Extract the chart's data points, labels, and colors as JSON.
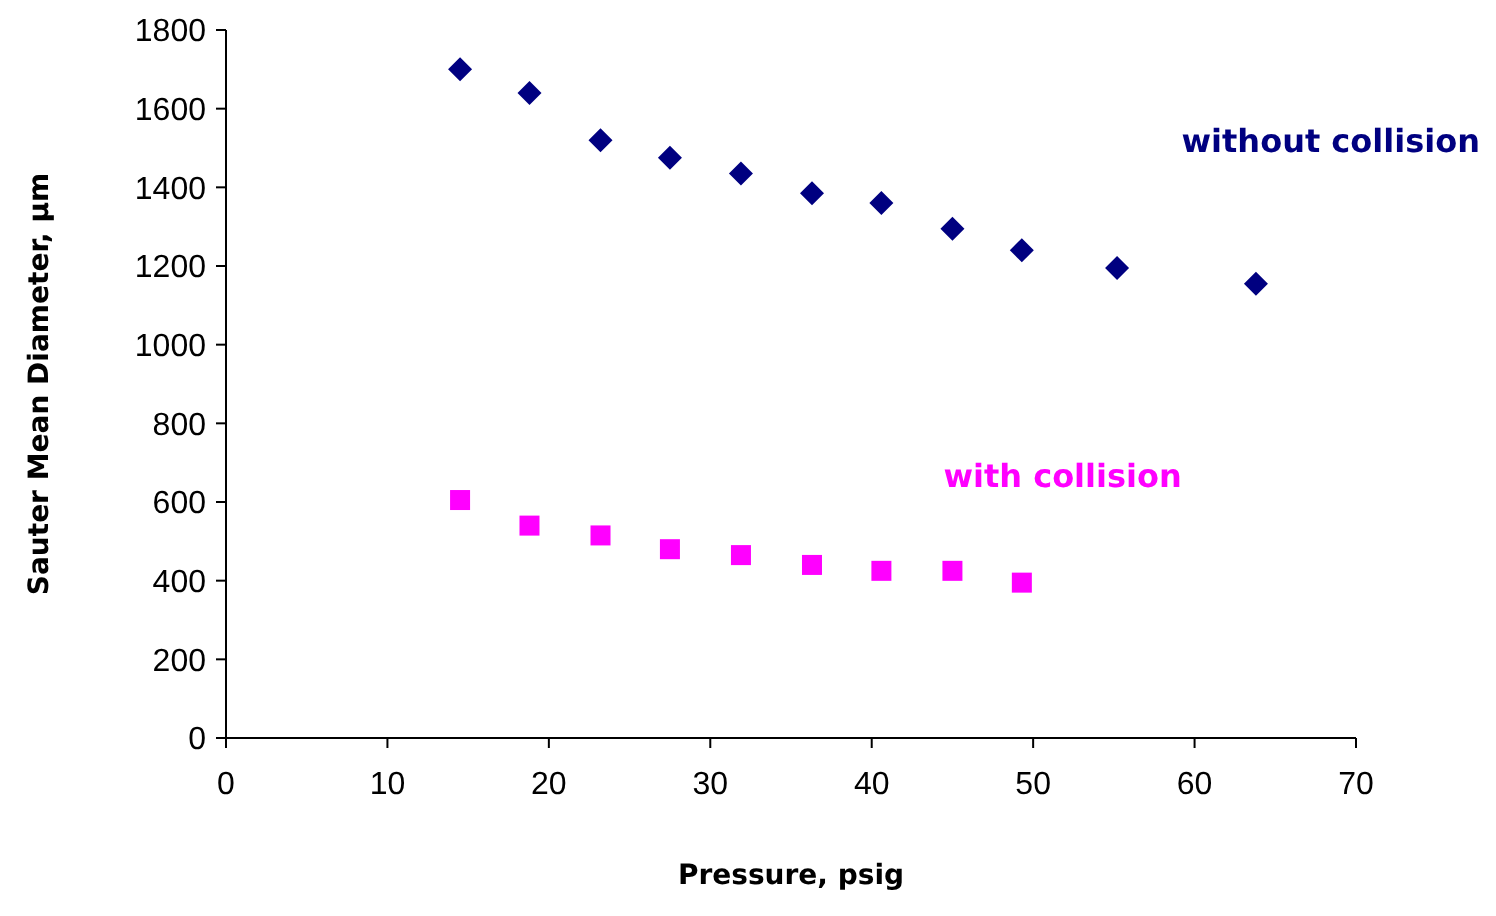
{
  "chart_data": {
    "type": "scatter",
    "xlabel": "Pressure, psig",
    "ylabel": "Sauter Mean Diameter, µm",
    "xlim": [
      0,
      70
    ],
    "xticks": [
      0,
      10,
      20,
      30,
      40,
      50,
      60,
      70
    ],
    "ylim": [
      0,
      1800
    ],
    "yticks": [
      0,
      200,
      400,
      600,
      800,
      1000,
      1200,
      1400,
      1600,
      1800
    ],
    "grid": false,
    "series": [
      {
        "name": "without collision",
        "color": "#000080",
        "marker": "diamond",
        "x": [
          14.5,
          18.8,
          23.2,
          27.5,
          31.9,
          36.3,
          40.6,
          45,
          49.3,
          55.2,
          63.8
        ],
        "values": [
          1700,
          1640,
          1520,
          1475,
          1435,
          1385,
          1360,
          1295,
          1240,
          1195,
          1155
        ]
      },
      {
        "name": "with collision",
        "color": "#ff00ff",
        "marker": "square",
        "x": [
          14.5,
          18.8,
          23.2,
          27.5,
          31.9,
          36.3,
          40.6,
          45,
          49.3
        ],
        "values": [
          605,
          540,
          515,
          480,
          465,
          440,
          425,
          425,
          395
        ]
      }
    ]
  }
}
